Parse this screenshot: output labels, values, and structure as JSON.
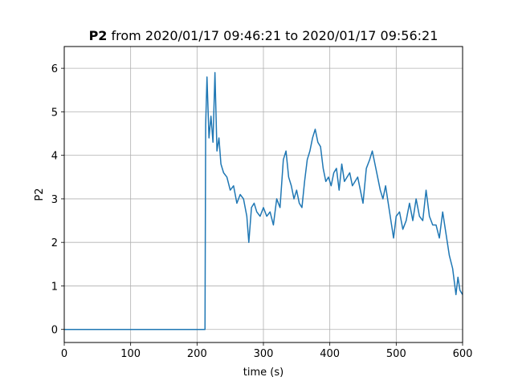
{
  "chart_data": {
    "type": "line",
    "title": {
      "bold": "P2",
      "rest": " from 2020/01/17 09:46:21 to 2020/01/17 09:56:21"
    },
    "xlabel": "time (s)",
    "ylabel": "P2",
    "xlim": [
      0,
      600
    ],
    "ylim": [
      -0.3,
      6.5
    ],
    "xticks": [
      0,
      100,
      200,
      300,
      400,
      500,
      600
    ],
    "yticks": [
      0,
      1,
      2,
      3,
      4,
      5,
      6
    ],
    "grid": true,
    "series": [
      {
        "color": "#1f77b4",
        "x": [
          0,
          212,
          213,
          215,
          218,
          221,
          224,
          227,
          230,
          233,
          236,
          240,
          245,
          250,
          255,
          260,
          265,
          270,
          275,
          278,
          282,
          286,
          290,
          295,
          300,
          305,
          310,
          315,
          320,
          325,
          330,
          334,
          338,
          342,
          346,
          350,
          354,
          358,
          362,
          366,
          370,
          374,
          378,
          382,
          386,
          390,
          394,
          398,
          402,
          406,
          410,
          414,
          418,
          422,
          426,
          430,
          434,
          438,
          442,
          446,
          450,
          455,
          460,
          464,
          468,
          472,
          476,
          480,
          484,
          488,
          492,
          496,
          500,
          505,
          510,
          515,
          520,
          525,
          530,
          535,
          540,
          545,
          550,
          555,
          560,
          565,
          570,
          575,
          580,
          585,
          590,
          593,
          596,
          600
        ],
        "y": [
          0,
          0,
          4.7,
          5.8,
          4.4,
          4.9,
          4.3,
          5.9,
          4.1,
          4.4,
          3.8,
          3.6,
          3.5,
          3.2,
          3.3,
          2.9,
          3.1,
          3.0,
          2.6,
          2.0,
          2.8,
          2.9,
          2.7,
          2.6,
          2.8,
          2.6,
          2.7,
          2.4,
          3.0,
          2.8,
          3.9,
          4.1,
          3.5,
          3.3,
          3.0,
          3.2,
          2.9,
          2.8,
          3.4,
          3.9,
          4.1,
          4.4,
          4.6,
          4.3,
          4.2,
          3.7,
          3.4,
          3.5,
          3.3,
          3.6,
          3.7,
          3.2,
          3.8,
          3.4,
          3.5,
          3.6,
          3.3,
          3.4,
          3.5,
          3.2,
          2.9,
          3.7,
          3.9,
          4.1,
          3.8,
          3.5,
          3.2,
          3.0,
          3.3,
          2.9,
          2.5,
          2.1,
          2.6,
          2.7,
          2.3,
          2.5,
          2.9,
          2.5,
          3.0,
          2.6,
          2.5,
          3.2,
          2.6,
          2.4,
          2.4,
          2.1,
          2.7,
          2.2,
          1.7,
          1.4,
          0.8,
          1.2,
          0.9,
          0.8
        ]
      }
    ]
  }
}
